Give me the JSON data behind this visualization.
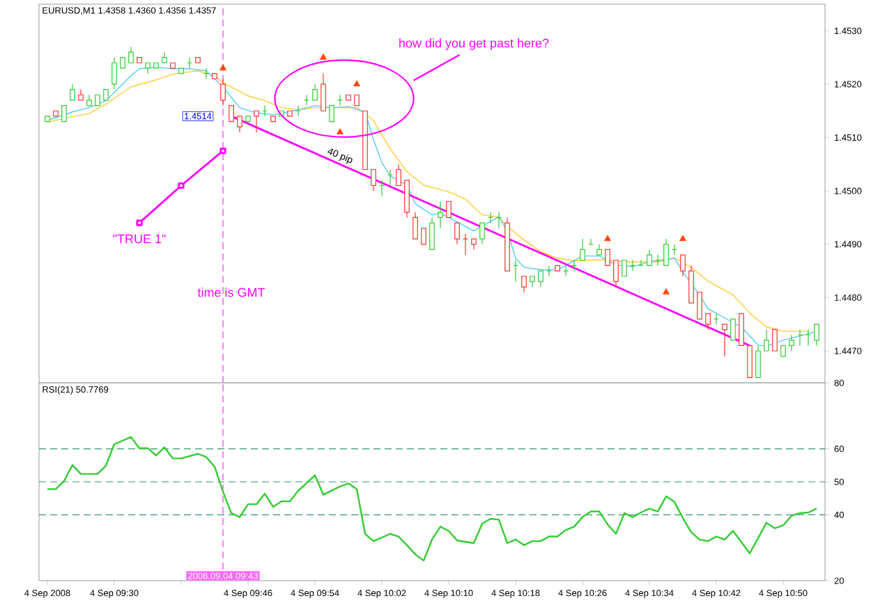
{
  "chart_data": [
    {
      "type": "candlestick",
      "title": "EURUSD,M1 1.4358 1.4360 1.4356 1.4357",
      "x": [
        "2008-09-04T09:22",
        "2008-09-04T09:23",
        "2008-09-04T09:24",
        "2008-09-04T09:25",
        "2008-09-04T09:26",
        "2008-09-04T09:27",
        "2008-09-04T09:28",
        "2008-09-04T09:29",
        "2008-09-04T09:30",
        "2008-09-04T09:31",
        "2008-09-04T09:32",
        "2008-09-04T09:33",
        "2008-09-04T09:34",
        "2008-09-04T09:35",
        "2008-09-04T09:36",
        "2008-09-04T09:37",
        "2008-09-04T09:38",
        "2008-09-04T09:39",
        "2008-09-04T09:40",
        "2008-09-04T09:41",
        "2008-09-04T09:42",
        "2008-09-04T09:43",
        "2008-09-04T09:44",
        "2008-09-04T09:45",
        "2008-09-04T09:46",
        "2008-09-04T09:47",
        "2008-09-04T09:48",
        "2008-09-04T09:49",
        "2008-09-04T09:50",
        "2008-09-04T09:51",
        "2008-09-04T09:52",
        "2008-09-04T09:53",
        "2008-09-04T09:54",
        "2008-09-04T09:55",
        "2008-09-04T09:56",
        "2008-09-04T09:57",
        "2008-09-04T09:58",
        "2008-09-04T09:59",
        "2008-09-04T10:00",
        "2008-09-04T10:01",
        "2008-09-04T10:02",
        "2008-09-04T10:03",
        "2008-09-04T10:04",
        "2008-09-04T10:05",
        "2008-09-04T10:06",
        "2008-09-04T10:07",
        "2008-09-04T10:08",
        "2008-09-04T10:09",
        "2008-09-04T10:10",
        "2008-09-04T10:11",
        "2008-09-04T10:12",
        "2008-09-04T10:13",
        "2008-09-04T10:14",
        "2008-09-04T10:15",
        "2008-09-04T10:16",
        "2008-09-04T10:17",
        "2008-09-04T10:18",
        "2008-09-04T10:19",
        "2008-09-04T10:20",
        "2008-09-04T10:21",
        "2008-09-04T10:22",
        "2008-09-04T10:23",
        "2008-09-04T10:24",
        "2008-09-04T10:25",
        "2008-09-04T10:26",
        "2008-09-04T10:27",
        "2008-09-04T10:28",
        "2008-09-04T10:29",
        "2008-09-04T10:30",
        "2008-09-04T10:31",
        "2008-09-04T10:32",
        "2008-09-04T10:33",
        "2008-09-04T10:34",
        "2008-09-04T10:35",
        "2008-09-04T10:36",
        "2008-09-04T10:37",
        "2008-09-04T10:38",
        "2008-09-04T10:39",
        "2008-09-04T10:40",
        "2008-09-04T10:41",
        "2008-09-04T10:42",
        "2008-09-04T10:43",
        "2008-09-04T10:44",
        "2008-09-04T10:45",
        "2008-09-04T10:46",
        "2008-09-04T10:47",
        "2008-09-04T10:48",
        "2008-09-04T10:49",
        "2008-09-04T10:50",
        "2008-09-04T10:51",
        "2008-09-04T10:52",
        "2008-09-04T10:53",
        "2008-09-04T10:54"
      ],
      "ohlc": [
        [
          1.4513,
          1.4514,
          1.4513,
          1.4514
        ],
        [
          1.4515,
          1.4515,
          1.4514,
          1.4514
        ],
        [
          1.4513,
          1.4516,
          1.4513,
          1.4516
        ],
        [
          1.4517,
          1.452,
          1.4517,
          1.4519
        ],
        [
          1.4518,
          1.4519,
          1.4517,
          1.4517
        ],
        [
          1.4516,
          1.4518,
          1.4516,
          1.4517
        ],
        [
          1.4516,
          1.4518,
          1.4516,
          1.4518
        ],
        [
          1.4517,
          1.4519,
          1.4517,
          1.4519
        ],
        [
          1.452,
          1.4525,
          1.4519,
          1.4524
        ],
        [
          1.4523,
          1.4525,
          1.4523,
          1.4525
        ],
        [
          1.4524,
          1.4527,
          1.4524,
          1.4526
        ],
        [
          1.4525,
          1.4525,
          1.4524,
          1.4524
        ],
        [
          1.4523,
          1.4524,
          1.4522,
          1.4524
        ],
        [
          1.4523,
          1.4524,
          1.4523,
          1.4524
        ],
        [
          1.4524,
          1.4526,
          1.4524,
          1.4525
        ],
        [
          1.4524,
          1.4524,
          1.4523,
          1.4523
        ],
        [
          1.4522,
          1.4523,
          1.4522,
          1.4523
        ],
        [
          1.4524,
          1.4525,
          1.4523,
          1.4524
        ],
        [
          1.4525,
          1.4525,
          1.4524,
          1.4524
        ],
        [
          1.4522,
          1.4523,
          1.4521,
          1.4522
        ],
        [
          1.4522,
          1.4522,
          1.4521,
          1.4521
        ],
        [
          1.452,
          1.4521,
          1.4516,
          1.4517
        ],
        [
          1.4516,
          1.4516,
          1.4513,
          1.4513
        ],
        [
          1.4514,
          1.4514,
          1.4511,
          1.4512
        ],
        [
          1.4513,
          1.4514,
          1.4513,
          1.4514
        ],
        [
          1.4515,
          1.4515,
          1.4511,
          1.4514
        ],
        [
          1.4515,
          1.4516,
          1.4514,
          1.4515
        ],
        [
          1.4514,
          1.4514,
          1.4513,
          1.4513
        ],
        [
          1.4514,
          1.4515,
          1.4514,
          1.4515
        ],
        [
          1.4515,
          1.4515,
          1.4514,
          1.4514
        ],
        [
          1.4515,
          1.4516,
          1.4514,
          1.4515
        ],
        [
          1.4517,
          1.4518,
          1.4516,
          1.4517
        ],
        [
          1.4517,
          1.452,
          1.4517,
          1.4519
        ],
        [
          1.452,
          1.4522,
          1.4515,
          1.4515
        ],
        [
          1.4513,
          1.4516,
          1.4513,
          1.4516
        ],
        [
          1.4517,
          1.4518,
          1.4516,
          1.4517
        ],
        [
          1.4518,
          1.4518,
          1.4517,
          1.4517
        ],
        [
          1.4518,
          1.4518,
          1.4516,
          1.4516
        ],
        [
          1.4515,
          1.4515,
          1.4504,
          1.4504
        ],
        [
          1.4504,
          1.4504,
          1.45,
          1.4501
        ],
        [
          1.4501,
          1.4502,
          1.4499,
          1.4501
        ],
        [
          1.4503,
          1.4504,
          1.4501,
          1.4503
        ],
        [
          1.4504,
          1.4505,
          1.4501,
          1.4501
        ],
        [
          1.4502,
          1.4502,
          1.4495,
          1.4496
        ],
        [
          1.4495,
          1.4496,
          1.4491,
          1.4491
        ],
        [
          1.4493,
          1.4493,
          1.449,
          1.449
        ],
        [
          1.4489,
          1.4495,
          1.4489,
          1.4494
        ],
        [
          1.4495,
          1.4498,
          1.4493,
          1.4496
        ],
        [
          1.4498,
          1.4498,
          1.4495,
          1.4495
        ],
        [
          1.4494,
          1.4494,
          1.449,
          1.4491
        ],
        [
          1.4491,
          1.4492,
          1.4488,
          1.4491
        ],
        [
          1.4491,
          1.4491,
          1.4489,
          1.449
        ],
        [
          1.4491,
          1.4494,
          1.449,
          1.4494
        ],
        [
          1.4495,
          1.4496,
          1.4494,
          1.4495
        ],
        [
          1.4495,
          1.4496,
          1.4493,
          1.4495
        ],
        [
          1.4494,
          1.4495,
          1.4485,
          1.4485
        ],
        [
          1.4486,
          1.4487,
          1.4483,
          1.4486
        ],
        [
          1.4484,
          1.4484,
          1.4481,
          1.4482
        ],
        [
          1.4483,
          1.4484,
          1.4482,
          1.4484
        ],
        [
          1.4483,
          1.4485,
          1.4482,
          1.4485
        ],
        [
          1.4485,
          1.4486,
          1.4484,
          1.4485
        ],
        [
          1.4486,
          1.4486,
          1.4485,
          1.4485
        ],
        [
          1.4485,
          1.4486,
          1.4484,
          1.4485
        ],
        [
          1.4486,
          1.4487,
          1.4485,
          1.4486
        ],
        [
          1.4487,
          1.4491,
          1.4487,
          1.4489
        ],
        [
          1.449,
          1.4491,
          1.449,
          1.449
        ],
        [
          1.4488,
          1.449,
          1.4488,
          1.4489
        ],
        [
          1.4489,
          1.4489,
          1.4486,
          1.4486
        ],
        [
          1.4487,
          1.4487,
          1.4482,
          1.4483
        ],
        [
          1.4484,
          1.4487,
          1.4484,
          1.4487
        ],
        [
          1.4486,
          1.4487,
          1.4485,
          1.4486
        ],
        [
          1.4486,
          1.4487,
          1.4486,
          1.4486
        ],
        [
          1.4486,
          1.4489,
          1.4486,
          1.4488
        ],
        [
          1.4487,
          1.4488,
          1.4486,
          1.4487
        ],
        [
          1.4486,
          1.4491,
          1.4486,
          1.449
        ],
        [
          1.4489,
          1.449,
          1.4488,
          1.4489
        ],
        [
          1.4488,
          1.4488,
          1.4484,
          1.4485
        ],
        [
          1.4485,
          1.4486,
          1.4479,
          1.4479
        ],
        [
          1.4481,
          1.4481,
          1.4476,
          1.4476
        ],
        [
          1.4477,
          1.4477,
          1.4474,
          1.4475
        ],
        [
          1.4476,
          1.4477,
          1.4475,
          1.4476
        ],
        [
          1.4475,
          1.4475,
          1.4469,
          1.4474
        ],
        [
          1.4472,
          1.4476,
          1.4472,
          1.4476
        ],
        [
          1.4477,
          1.4477,
          1.4471,
          1.4471
        ],
        [
          1.4471,
          1.4471,
          1.4465,
          1.4465
        ],
        [
          1.4465,
          1.4471,
          1.4465,
          1.447
        ],
        [
          1.447,
          1.4474,
          1.447,
          1.4472
        ],
        [
          1.4474,
          1.4474,
          1.447,
          1.447
        ],
        [
          1.4469,
          1.4471,
          1.4469,
          1.4471
        ],
        [
          1.4471,
          1.4473,
          1.447,
          1.4472
        ],
        [
          1.4473,
          1.4474,
          1.4471,
          1.4473
        ],
        [
          1.4473,
          1.4474,
          1.4471,
          1.4473
        ],
        [
          1.4472,
          1.4475,
          1.4471,
          1.4475
        ]
      ],
      "colors": [
        "#33cc33",
        "#ff3333",
        "#33cc33",
        "#33cc33",
        "#ff3333",
        "#33cc33",
        "#33cc33",
        "#33cc33",
        "#33cc33",
        "#33cc33",
        "#33cc33",
        "#ff3333",
        "#33cc33",
        "#33cc33",
        "#33cc33",
        "#ff3333",
        "#33cc33",
        "#33cc33",
        "#ff3333",
        "#33cc33",
        "#ff3333",
        "#ff3333",
        "#ff3333",
        "#ff3333",
        "#33cc33",
        "#ff3333",
        "#33cc33",
        "#ff3333",
        "#33cc33",
        "#ff3333",
        "#33cc33",
        "#33cc33",
        "#33cc33",
        "#ff3333",
        "#33cc33",
        "#33cc33",
        "#ff3333",
        "#ff3333",
        "#ff3333",
        "#ff3333",
        "#33cc33",
        "#33cc33",
        "#ff3333",
        "#ff3333",
        "#ff3333",
        "#ff3333",
        "#33cc33",
        "#33cc33",
        "#ff3333",
        "#ff3333",
        "#ff3333",
        "#ff3333",
        "#33cc33",
        "#33cc33",
        "#33cc33",
        "#ff3333",
        "#33cc33",
        "#ff3333",
        "#33cc33",
        "#33cc33",
        "#33cc33",
        "#ff3333",
        "#33cc33",
        "#33cc33",
        "#33cc33",
        "#33cc33",
        "#33cc33",
        "#ff3333",
        "#ff3333",
        "#33cc33",
        "#33cc33",
        "#33cc33",
        "#33cc33",
        "#33cc33",
        "#33cc33",
        "#33cc33",
        "#ff3333",
        "#ff3333",
        "#ff3333",
        "#ff3333",
        "#33cc33",
        "#ff3333",
        "#33cc33",
        "#ff3333",
        "#ff3333",
        "#33cc33",
        "#33cc33",
        "#ff3333",
        "#33cc33",
        "#33cc33",
        "#33cc33",
        "#33cc33",
        "#33cc33"
      ],
      "series": [
        {
          "type": "line",
          "color": "#ffcc33",
          "x": [
            "2008-09-04T09:22",
            "2008-09-04T09:25",
            "2008-09-04T09:27",
            "2008-09-04T09:29",
            "2008-09-04T09:32",
            "2008-09-04T09:35",
            "2008-09-04T09:37",
            "2008-09-04T09:40",
            "2008-09-04T09:42",
            "2008-09-04T09:43",
            "2008-09-04T09:46",
            "2008-09-04T09:48",
            "2008-09-04T09:50",
            "2008-09-04T09:52",
            "2008-09-04T09:54",
            "2008-09-04T09:57",
            "2008-09-04T09:59",
            "2008-09-04T10:01",
            "2008-09-04T10:03",
            "2008-09-04T10:05",
            "2008-09-04T10:07",
            "2008-09-04T10:10",
            "2008-09-04T10:12",
            "2008-09-04T10:14",
            "2008-09-04T10:16",
            "2008-09-04T10:17",
            "2008-09-04T10:19",
            "2008-09-04T10:21",
            "2008-09-04T10:23",
            "2008-09-04T10:25",
            "2008-09-04T10:28",
            "2008-09-04T10:31",
            "2008-09-04T10:35",
            "2008-09-04T10:37",
            "2008-09-04T10:39",
            "2008-09-04T10:41",
            "2008-09-04T10:44",
            "2008-09-04T10:46",
            "2008-09-04T10:48",
            "2008-09-04T10:50",
            "2008-09-04T10:53"
          ],
          "values": [
            1.45129,
            1.45139,
            1.45145,
            1.45163,
            1.45195,
            1.45208,
            1.45219,
            1.45225,
            1.45216,
            1.45203,
            1.45178,
            1.45169,
            1.45156,
            1.45152,
            1.45156,
            1.45156,
            1.45156,
            1.45132,
            1.45079,
            1.45036,
            1.45011,
            1.44998,
            1.44985,
            1.44955,
            1.44951,
            1.44934,
            1.44908,
            1.44886,
            1.44874,
            1.44869,
            1.44871,
            1.44867,
            1.44867,
            1.44874,
            1.44857,
            1.44831,
            1.44805,
            1.44771,
            1.44745,
            1.44737,
            1.44737
          ]
        },
        {
          "type": "line",
          "color": "#55ccee",
          "x": [
            "2008-09-04T09:22",
            "2008-09-04T09:25",
            "2008-09-04T09:27",
            "2008-09-04T09:29",
            "2008-09-04T09:32",
            "2008-09-04T09:33",
            "2008-09-04T09:35",
            "2008-09-04T09:37",
            "2008-09-04T09:39",
            "2008-09-04T09:41",
            "2008-09-04T09:43",
            "2008-09-04T09:45",
            "2008-09-04T09:47",
            "2008-09-04T09:49",
            "2008-09-04T09:51",
            "2008-09-04T09:53",
            "2008-09-04T09:54",
            "2008-09-04T09:56",
            "2008-09-04T09:58",
            "2008-09-04T10:00",
            "2008-09-04T10:01",
            "2008-09-04T10:02",
            "2008-09-04T10:03",
            "2008-09-04T10:05",
            "2008-09-04T10:06",
            "2008-09-04T10:08",
            "2008-09-04T10:09",
            "2008-09-04T10:11",
            "2008-09-04T10:13",
            "2008-09-04T10:14",
            "2008-09-04T10:16",
            "2008-09-04T10:17",
            "2008-09-04T10:18",
            "2008-09-04T10:19",
            "2008-09-04T10:21",
            "2008-09-04T10:23",
            "2008-09-04T10:26",
            "2008-09-04T10:28",
            "2008-09-04T10:30",
            "2008-09-04T10:32",
            "2008-09-04T10:34",
            "2008-09-04T10:37",
            "2008-09-04T10:38",
            "2008-09-04T10:40",
            "2008-09-04T10:41",
            "2008-09-04T10:43",
            "2008-09-04T10:45",
            "2008-09-04T10:47",
            "2008-09-04T10:48",
            "2008-09-04T10:50",
            "2008-09-04T10:52",
            "2008-09-04T10:54"
          ],
          "values": [
            1.45132,
            1.45148,
            1.45156,
            1.45169,
            1.45216,
            1.45229,
            1.45232,
            1.45229,
            1.45229,
            1.45225,
            1.45195,
            1.45156,
            1.45146,
            1.45143,
            1.45148,
            1.45156,
            1.4516,
            1.45156,
            1.45158,
            1.45148,
            1.45096,
            1.45053,
            1.45028,
            1.45011,
            1.44976,
            1.44955,
            1.44958,
            1.44942,
            1.44925,
            1.44934,
            1.44951,
            1.44925,
            1.44874,
            1.44857,
            1.44852,
            1.44852,
            1.44878,
            1.44878,
            1.44861,
            1.44858,
            1.44867,
            1.44874,
            1.44848,
            1.44805,
            1.44779,
            1.44762,
            1.44745,
            1.44711,
            1.44709,
            1.4472,
            1.44728,
            1.44737
          ]
        },
        {
          "type": "line",
          "color": "#ff00ff",
          "x": [
            "2008-09-04T09:44",
            "2008-09-04T10:46"
          ],
          "values": [
            1.4514,
            1.4471
          ]
        },
        {
          "type": "line",
          "color": "#ff00ff",
          "marker": "square",
          "x": [
            "2008-09-04T09:33",
            "2008-09-04T09:38",
            "2008-09-04T09:43"
          ],
          "values": [
            1.4494,
            1.4501,
            1.45075
          ]
        },
        {
          "type": "scatter",
          "color": "#ff4500",
          "marker": "triangle",
          "x": [
            "2008-09-04T09:43",
            "2008-09-04T09:55",
            "2008-09-04T09:59",
            "2008-09-04T10:29",
            "2008-09-04T10:38"
          ],
          "values": [
            1.4523,
            1.4525,
            1.452,
            1.4491,
            1.4491
          ]
        },
        {
          "type": "scatter",
          "color": "#ff4500",
          "marker": "triangle",
          "x": [
            "2008-09-04T09:57",
            "2008-09-04T10:36"
          ],
          "values": [
            1.4511,
            1.4481
          ]
        }
      ],
      "xlim": [
        "2008-09-04T09:21",
        "2008-09-04T10:55"
      ],
      "ylim": [
        1.4464,
        1.4535
      ],
      "yticks": [
        {
          "value": 1.447,
          "label": "1.4470"
        },
        {
          "value": 1.448,
          "label": "1.4480"
        },
        {
          "value": 1.449,
          "label": "1.4490"
        },
        {
          "value": 1.45,
          "label": "1.4500"
        },
        {
          "value": 1.451,
          "label": "1.4510"
        },
        {
          "value": 1.452,
          "label": "1.4520"
        },
        {
          "value": 1.453,
          "label": "1.4530"
        }
      ],
      "tick_labels": "y",
      "ref_lines": [
        {
          "axis": "x",
          "value": "2008-09-04T09:43",
          "color": "#ff66ff",
          "line_style": "dashed"
        }
      ],
      "annotations": [
        "how did you get past here?",
        "\"TRUE 1\"",
        "time is GMT",
        "40 pip",
        "1.4514"
      ]
    },
    {
      "type": "line",
      "title": "RSI(21) 50.7769",
      "series": [
        {
          "color": "#33cc33",
          "x": [
            "2008-09-04T09:22",
            "2008-09-04T09:23",
            "2008-09-04T09:24",
            "2008-09-04T09:25",
            "2008-09-04T09:26",
            "2008-09-04T09:28",
            "2008-09-04T09:29",
            "2008-09-04T09:30",
            "2008-09-04T09:32",
            "2008-09-04T09:33",
            "2008-09-04T09:34",
            "2008-09-04T09:35",
            "2008-09-04T09:36",
            "2008-09-04T09:37",
            "2008-09-04T09:38",
            "2008-09-04T09:40",
            "2008-09-04T09:41",
            "2008-09-04T09:42",
            "2008-09-04T09:43",
            "2008-09-04T09:44",
            "2008-09-04T09:45",
            "2008-09-04T09:46",
            "2008-09-04T09:47",
            "2008-09-04T09:48",
            "2008-09-04T09:49",
            "2008-09-04T09:50",
            "2008-09-04T09:51",
            "2008-09-04T09:52",
            "2008-09-04T09:54",
            "2008-09-04T09:55",
            "2008-09-04T09:57",
            "2008-09-04T09:58",
            "2008-09-04T09:59",
            "2008-09-04T10:00",
            "2008-09-04T10:01",
            "2008-09-04T10:03",
            "2008-09-04T10:04",
            "2008-09-04T10:05",
            "2008-09-04T10:06",
            "2008-09-04T10:07",
            "2008-09-04T10:08",
            "2008-09-04T10:09",
            "2008-09-04T10:10",
            "2008-09-04T10:11",
            "2008-09-04T10:13",
            "2008-09-04T10:14",
            "2008-09-04T10:15",
            "2008-09-04T10:16",
            "2008-09-04T10:17",
            "2008-09-04T10:18",
            "2008-09-04T10:19",
            "2008-09-04T10:20",
            "2008-09-04T10:21",
            "2008-09-04T10:22",
            "2008-09-04T10:23",
            "2008-09-04T10:24",
            "2008-09-04T10:25",
            "2008-09-04T10:26",
            "2008-09-04T10:27",
            "2008-09-04T10:28",
            "2008-09-04T10:29",
            "2008-09-04T10:30",
            "2008-09-04T10:31",
            "2008-09-04T10:32",
            "2008-09-04T10:33",
            "2008-09-04T10:34",
            "2008-09-04T10:35",
            "2008-09-04T10:36",
            "2008-09-04T10:37",
            "2008-09-04T10:38",
            "2008-09-04T10:39",
            "2008-09-04T10:40",
            "2008-09-04T10:41",
            "2008-09-04T10:42",
            "2008-09-04T10:43",
            "2008-09-04T10:44",
            "2008-09-04T10:45",
            "2008-09-04T10:46",
            "2008-09-04T10:47",
            "2008-09-04T10:48",
            "2008-09-04T10:49",
            "2008-09-04T10:50",
            "2008-09-04T10:51",
            "2008-09-04T10:52",
            "2008-09-04T10:53",
            "2008-09-04T10:54"
          ],
          "values": [
            47.8,
            47.8,
            50.3,
            55.1,
            52.4,
            52.4,
            54.9,
            61.4,
            63.6,
            60.2,
            60.2,
            58.0,
            60.5,
            57.1,
            57.1,
            58.5,
            57.5,
            54.6,
            47.0,
            40.5,
            39.3,
            43.2,
            43.2,
            46.4,
            42.4,
            44.1,
            44.1,
            47.3,
            52.0,
            46.1,
            48.6,
            49.5,
            47.8,
            34.2,
            32.0,
            34.2,
            33.4,
            30.8,
            28.0,
            26.1,
            32.5,
            36.4,
            35.1,
            32.2,
            31.4,
            37.3,
            38.8,
            38.5,
            31.4,
            32.5,
            30.8,
            32.0,
            32.0,
            33.4,
            33.4,
            35.4,
            36.4,
            39.3,
            41.0,
            41.0,
            37.1,
            34.2,
            40.5,
            39.3,
            40.7,
            41.9,
            41.0,
            45.6,
            43.9,
            39.0,
            34.7,
            32.5,
            32.0,
            33.4,
            32.5,
            35.1,
            31.7,
            28.3,
            32.9,
            37.6,
            35.9,
            36.8,
            39.7,
            40.5,
            40.7,
            41.9
          ]
        }
      ],
      "xlim": [
        "2008-09-04T09:21",
        "2008-09-04T10:55"
      ],
      "ylim": [
        20,
        80
      ],
      "xticks": [
        {
          "value": "2008-09-04T09:22",
          "label": "4 Sep 2008"
        },
        {
          "value": "2008-09-04T09:30",
          "label": "4 Sep 09:30"
        },
        {
          "value": "2008-09-04T09:38",
          "label": null
        },
        {
          "value": "2008-09-04T09:46",
          "label": "4 Sep 09:46"
        },
        {
          "value": "2008-09-04T09:54",
          "label": "4 Sep 09:54"
        },
        {
          "value": "2008-09-04T10:02",
          "label": "4 Sep 10:02"
        },
        {
          "value": "2008-09-04T10:10",
          "label": "4 Sep 10:10"
        },
        {
          "value": "2008-09-04T10:18",
          "label": "4 Sep 10:18"
        },
        {
          "value": "2008-09-04T10:26",
          "label": "4 Sep 10:26"
        },
        {
          "value": "2008-09-04T10:34",
          "label": "4 Sep 10:34"
        },
        {
          "value": "2008-09-04T10:42",
          "label": "4 Sep 10:42"
        },
        {
          "value": "2008-09-04T10:50",
          "label": "4 Sep 10:50"
        }
      ],
      "yticks": [
        20,
        40,
        50,
        60,
        80
      ],
      "ref_lines": [
        {
          "axis": "y",
          "value": 60,
          "color": "#339966",
          "line_style": "dashed"
        },
        {
          "axis": "y",
          "value": 50,
          "color": "#339966",
          "line_style": "dashed"
        },
        {
          "axis": "y",
          "value": 40,
          "color": "#339966",
          "line_style": "dashed"
        },
        {
          "axis": "x",
          "value": "2008-09-04T09:43",
          "label": "2008.09.04 09:43",
          "color": "#ff66ff",
          "line_style": "dashed"
        }
      ]
    }
  ]
}
